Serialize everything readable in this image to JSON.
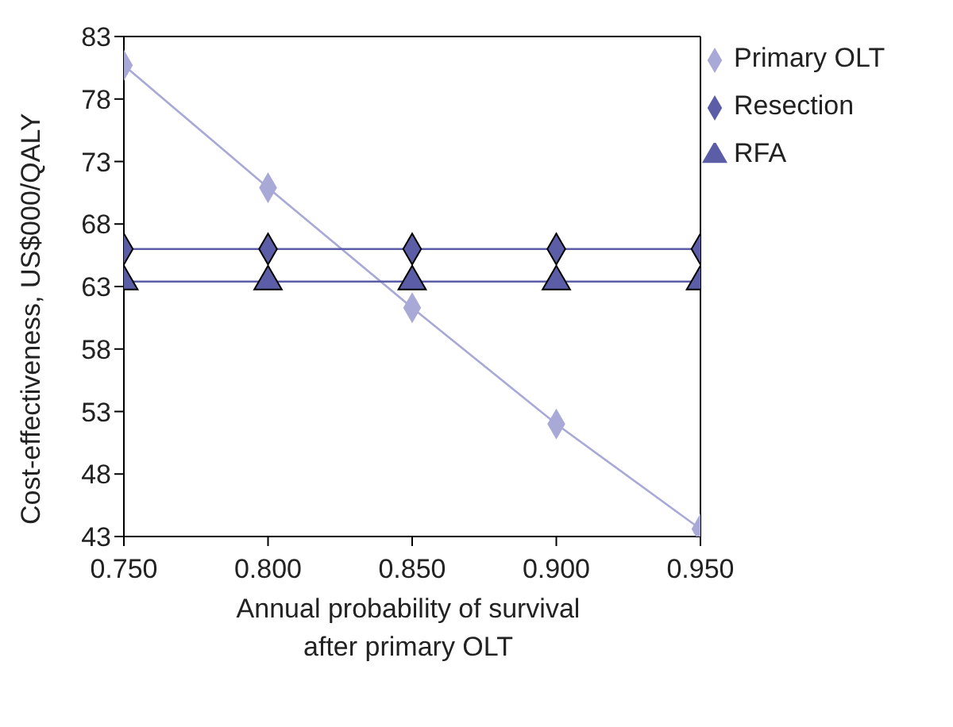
{
  "chart_data": {
    "type": "line",
    "xlabel": "Annual probability of survival\nafter primary OLT",
    "ylabel": "Cost-effectiveness, US$000/QALY",
    "x": [
      0.75,
      0.8,
      0.85,
      0.9,
      0.95
    ],
    "xlim": [
      0.75,
      0.95
    ],
    "xticks": [
      {
        "value": 0.75,
        "label": "0.750"
      },
      {
        "value": 0.8,
        "label": "0.800"
      },
      {
        "value": 0.85,
        "label": "0.850"
      },
      {
        "value": 0.9,
        "label": "0.900"
      },
      {
        "value": 0.95,
        "label": "0.950"
      }
    ],
    "ylim": [
      43,
      83
    ],
    "yticks": [
      43,
      48,
      53,
      58,
      63,
      68,
      73,
      78,
      83
    ],
    "series": [
      {
        "name": "Primary OLT",
        "color": "#a9a9d8",
        "marker": "diamond",
        "values": [
          80.7,
          70.9,
          61.3,
          52.0,
          43.6
        ]
      },
      {
        "name": "Resection",
        "color": "#5b5ea6",
        "marker": "diamond",
        "values": [
          66.0,
          66.0,
          66.0,
          66.0,
          66.0
        ]
      },
      {
        "name": "RFA",
        "color": "#5b5ea6",
        "marker": "triangle",
        "values": [
          63.4,
          63.4,
          63.4,
          63.4,
          63.4
        ]
      }
    ],
    "grid": false,
    "legend": "top right",
    "line_style": "solid"
  }
}
